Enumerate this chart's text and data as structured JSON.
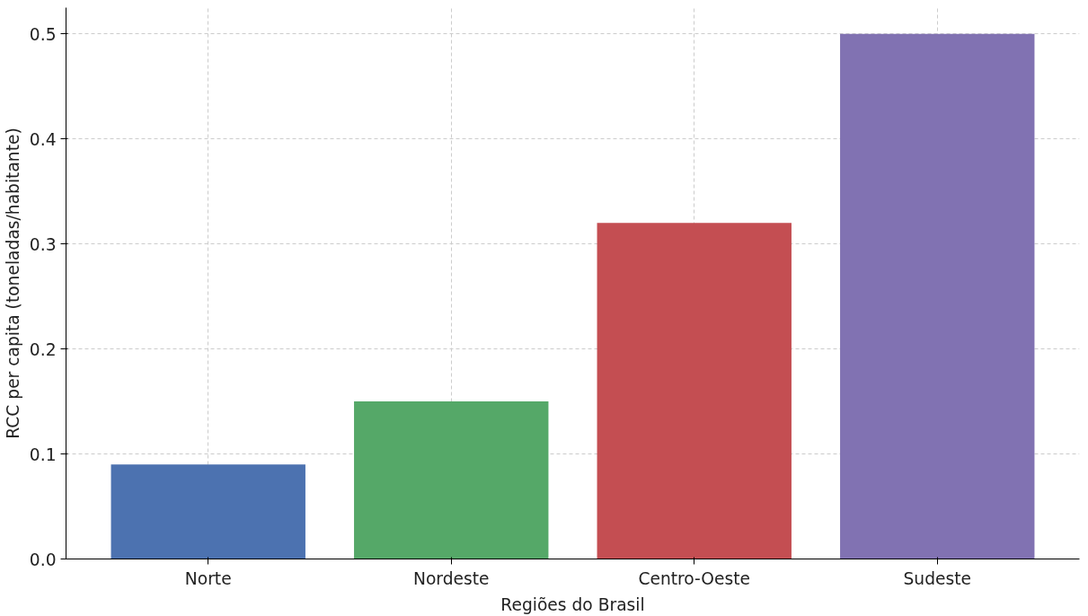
{
  "chart_data": {
    "type": "bar",
    "xlabel": "Regiões do Brasil",
    "ylabel": "RCC per capita (toneladas/habitante)",
    "categories": [
      "Norte",
      "Nordeste",
      "Centro-Oeste",
      "Sudeste"
    ],
    "values": [
      0.09,
      0.15,
      0.32,
      0.5
    ],
    "colors": [
      "#4c72b0",
      "#55a868",
      "#c44e52",
      "#8172b2"
    ],
    "ylim": [
      0,
      0.525
    ],
    "yticks": [
      {
        "value": 0,
        "label": "0.0"
      },
      0.1,
      0.2,
      0.3,
      0.4,
      0.5
    ],
    "grid": true
  }
}
